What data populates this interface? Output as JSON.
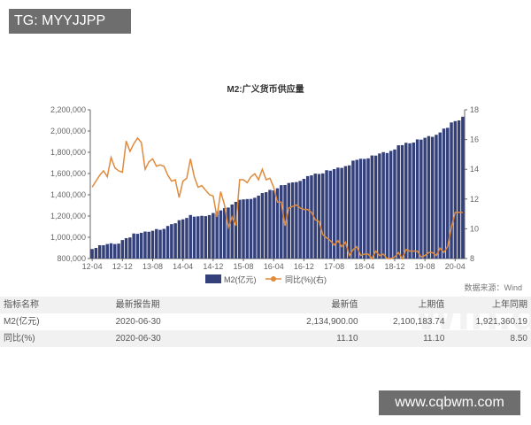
{
  "watermark_tag": "TG: MYYJJPP",
  "site_label": "www.cqbwm.com",
  "chart_data": {
    "type": "bar+line",
    "title": "M2:广义货币供应量",
    "source": "数据来源：Wind",
    "start": "2012-04",
    "end": "2020-06",
    "frequency": "monthly",
    "x_ticks": [
      "12-04",
      "12-12",
      "13-08",
      "14-04",
      "14-12",
      "15-08",
      "16-04",
      "16-12",
      "17-08",
      "18-04",
      "18-12",
      "19-08",
      "20-04"
    ],
    "y_left": {
      "range": [
        800000,
        2200000
      ],
      "ticks": [
        "800,000",
        "1,000,000",
        "1,200,000",
        "1,400,000",
        "1,600,000",
        "1,800,000",
        "2,000,000",
        "2,200,000"
      ]
    },
    "y_right": {
      "range": [
        8,
        18
      ],
      "ticks": [
        "8",
        "10",
        "12",
        "14",
        "16",
        "18"
      ]
    },
    "legend_placement": "bottom",
    "series": [
      {
        "name": "M2(亿元)",
        "type": "bar",
        "axis": "left",
        "color": "#34407a",
        "values": [
          889600,
          900000,
          925000,
          925400,
          936400,
          943700,
          936400,
          940600,
          974100,
          992100,
          998600,
          1035800,
          1032600,
          1042200,
          1054000,
          1052200,
          1061300,
          1077400,
          1070200,
          1079300,
          1106500,
          1123500,
          1131800,
          1160700,
          1168800,
          1182300,
          1209600,
          1194100,
          1197500,
          1202100,
          1199200,
          1209000,
          1228400,
          1242700,
          1253400,
          1275300,
          1280100,
          1308600,
          1333400,
          1353200,
          1356900,
          1359800,
          1361000,
          1372000,
          1392300,
          1416300,
          1424600,
          1446200,
          1442100,
          1461100,
          1490500,
          1491600,
          1511000,
          1516400,
          1519500,
          1530400,
          1550100,
          1575900,
          1582900,
          1599600,
          1596300,
          1601400,
          1631300,
          1627000,
          1641700,
          1655700,
          1653400,
          1670000,
          1676800,
          1721600,
          1729100,
          1739300,
          1737700,
          1743100,
          1770200,
          1769100,
          1788700,
          1801700,
          1793100,
          1813200,
          1826700,
          1865900,
          1867400,
          1889400,
          1884700,
          1891500,
          1921400,
          1919400,
          1936500,
          1952600,
          1945600,
          1965000,
          1986500,
          2023100,
          2030300,
          2080900,
          2093400,
          2100200,
          2134900
        ]
      },
      {
        "name": "同比(%)(右)",
        "type": "line",
        "axis": "right",
        "color": "#e08a3c",
        "values": [
          12.8,
          13.2,
          13.6,
          13.9,
          13.5,
          14.8,
          14.1,
          13.9,
          13.8,
          15.9,
          15.2,
          15.7,
          16.1,
          15.8,
          14.0,
          14.5,
          14.7,
          14.2,
          14.3,
          14.2,
          13.6,
          13.2,
          13.3,
          12.1,
          13.2,
          13.4,
          14.7,
          13.5,
          12.8,
          12.9,
          12.6,
          12.3,
          12.2,
          10.8,
          12.5,
          11.6,
          10.1,
          10.8,
          10.2,
          13.3,
          13.3,
          13.1,
          13.5,
          13.7,
          13.3,
          14.0,
          13.3,
          13.4,
          12.8,
          11.8,
          11.8,
          10.2,
          11.4,
          11.5,
          11.6,
          11.4,
          11.3,
          11.3,
          11.1,
          10.6,
          10.5,
          9.6,
          9.4,
          9.2,
          8.9,
          9.2,
          8.8,
          9.1,
          8.2,
          8.6,
          8.8,
          8.2,
          8.3,
          8.3,
          8.0,
          8.5,
          8.2,
          8.3,
          8.0,
          8.0,
          8.1,
          8.4,
          8.0,
          8.6,
          8.5,
          8.5,
          8.5,
          8.1,
          8.2,
          8.4,
          8.4,
          8.2,
          8.7,
          8.4,
          8.8,
          10.1,
          11.1,
          11.1,
          11.1
        ]
      }
    ]
  },
  "table": {
    "headers": [
      "指标名称",
      "最新报告期",
      "最新值",
      "上期值",
      "上年同期"
    ],
    "rows": [
      [
        "M2(亿元)",
        "2020-06-30",
        "2,134,900.00",
        "2,100,183.74",
        "1,921,360.19"
      ],
      [
        "同比(%)",
        "2020-06-30",
        "11.10",
        "11.10",
        "8.50"
      ]
    ]
  },
  "table_watermark": "Win.d"
}
